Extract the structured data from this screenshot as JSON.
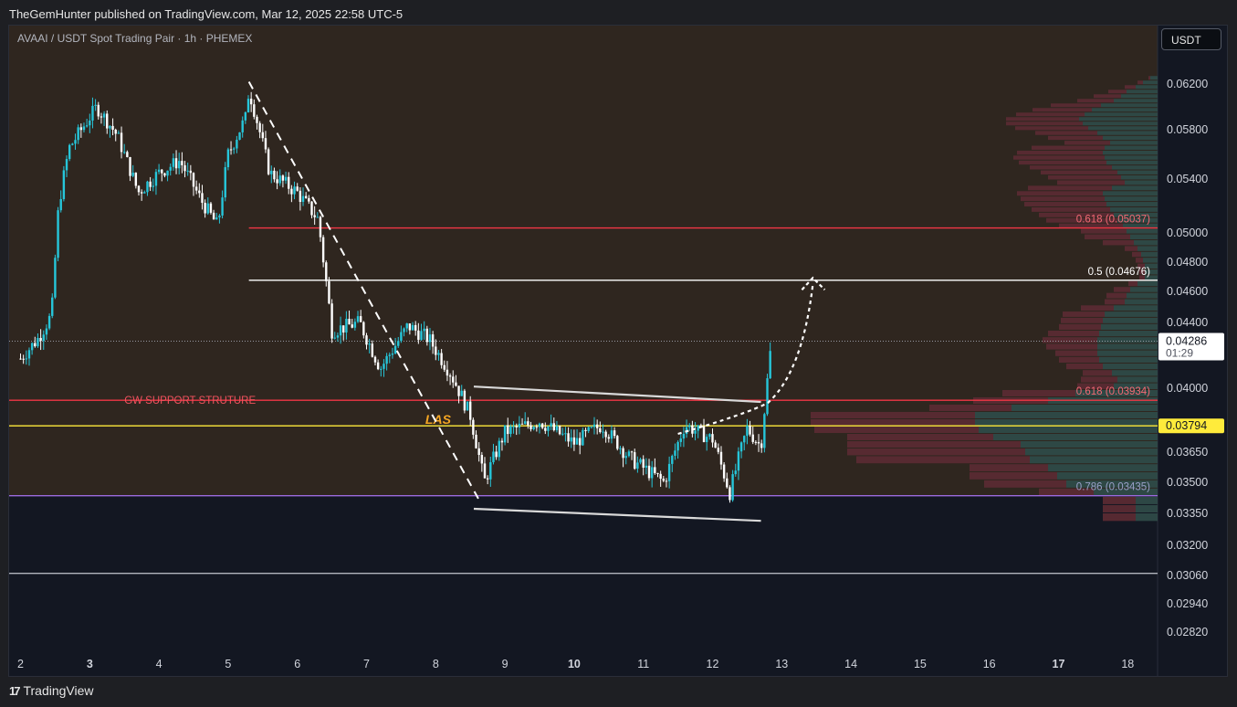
{
  "publish_info": "TheGemHunter published on TradingView.com, Mar 12, 2025 22:58 UTC-5",
  "symbol_title": "AVAAI / USDT Spot Trading Pair · 1h · PHEMEX",
  "currency_button": "USDT",
  "footer_brand": "TradingView",
  "colors": {
    "background_upper": "#2f261f",
    "background_lower": "#131722",
    "candle": "#26c6da",
    "resistance_line": "#f23645",
    "half_line": "#ffffff",
    "las_line": "#ffeb3b",
    "support_purple": "#9c6ade",
    "bottom_line": "#b2b5be",
    "vp_up": "#2e4a48",
    "vp_down": "#5a2a33",
    "las_label": "#f5a623"
  },
  "chart_data": {
    "type": "candlestick",
    "x_tick_labels": [
      "2",
      "3",
      "4",
      "5",
      "6",
      "7",
      "8",
      "9",
      "10",
      "11",
      "12",
      "13",
      "14",
      "15",
      "16",
      "17",
      "18"
    ],
    "bold_x_ticks": [
      "3",
      "10",
      "17"
    ],
    "y_tick_labels": [
      "0.06200",
      "0.05800",
      "0.05400",
      "0.05000",
      "0.04800",
      "0.04600",
      "0.04400",
      "0.04000",
      "0.03650",
      "0.03500",
      "0.03350",
      "0.03200",
      "0.03060",
      "0.02940",
      "0.02820"
    ],
    "current_price": "0.04286",
    "countdown": "01:29",
    "las_price": "0.03794",
    "horizontal_levels": [
      {
        "price": 0.05037,
        "label": "0.618 (0.05037)",
        "style": "resistance"
      },
      {
        "price": 0.04676,
        "label": "0.5 (0.04676)",
        "style": "half"
      },
      {
        "price": 0.03934,
        "label": "0.618 (0.03934)",
        "style": "resistance"
      },
      {
        "price": 0.03794,
        "label": "",
        "style": "las"
      },
      {
        "price": 0.03435,
        "label": "0.786 (0.03435)",
        "style": "purple"
      },
      {
        "price": 0.0307,
        "label": "",
        "style": "bottom"
      }
    ],
    "annotations": {
      "support_label": "GW SUPPORT STRUTURE",
      "las_label": "LAS"
    },
    "price_path": [
      {
        "day": 2.0,
        "price": 0.0418
      },
      {
        "day": 2.25,
        "price": 0.043
      },
      {
        "day": 2.45,
        "price": 0.0445
      },
      {
        "day": 2.55,
        "price": 0.052
      },
      {
        "day": 2.7,
        "price": 0.0565
      },
      {
        "day": 2.9,
        "price": 0.0582
      },
      {
        "day": 3.1,
        "price": 0.06
      },
      {
        "day": 3.4,
        "price": 0.0575
      },
      {
        "day": 3.7,
        "price": 0.053
      },
      {
        "day": 4.0,
        "price": 0.0545
      },
      {
        "day": 4.3,
        "price": 0.0555
      },
      {
        "day": 4.6,
        "price": 0.0525
      },
      {
        "day": 4.85,
        "price": 0.0505
      },
      {
        "day": 5.0,
        "price": 0.056
      },
      {
        "day": 5.25,
        "price": 0.059
      },
      {
        "day": 5.3,
        "price": 0.0615
      },
      {
        "day": 5.6,
        "price": 0.0545
      },
      {
        "day": 6.0,
        "price": 0.053
      },
      {
        "day": 6.3,
        "price": 0.051
      },
      {
        "day": 6.5,
        "price": 0.0435
      },
      {
        "day": 6.9,
        "price": 0.044
      },
      {
        "day": 7.2,
        "price": 0.0412
      },
      {
        "day": 7.6,
        "price": 0.0438
      },
      {
        "day": 7.9,
        "price": 0.043
      },
      {
        "day": 8.2,
        "price": 0.041
      },
      {
        "day": 8.5,
        "price": 0.0385
      },
      {
        "day": 8.7,
        "price": 0.035
      },
      {
        "day": 9.0,
        "price": 0.0376
      },
      {
        "day": 9.5,
        "price": 0.0382
      },
      {
        "day": 10.0,
        "price": 0.037
      },
      {
        "day": 10.4,
        "price": 0.038
      },
      {
        "day": 10.8,
        "price": 0.0362
      },
      {
        "day": 11.3,
        "price": 0.035
      },
      {
        "day": 11.6,
        "price": 0.038
      },
      {
        "day": 12.0,
        "price": 0.0372
      },
      {
        "day": 12.25,
        "price": 0.0345
      },
      {
        "day": 12.5,
        "price": 0.0378
      },
      {
        "day": 12.7,
        "price": 0.0368
      },
      {
        "day": 12.85,
        "price": 0.0428
      }
    ],
    "volume_profile": [
      {
        "price": 0.0625,
        "up": 8,
        "down": 2
      },
      {
        "price": 0.0621,
        "up": 16,
        "down": 6
      },
      {
        "price": 0.0617,
        "up": 24,
        "down": 12
      },
      {
        "price": 0.0613,
        "up": 34,
        "down": 20
      },
      {
        "price": 0.0609,
        "up": 40,
        "down": 30
      },
      {
        "price": 0.0605,
        "up": 48,
        "down": 40
      },
      {
        "price": 0.0601,
        "up": 62,
        "down": 55
      },
      {
        "price": 0.0597,
        "up": 72,
        "down": 65
      },
      {
        "price": 0.0593,
        "up": 80,
        "down": 75
      },
      {
        "price": 0.0589,
        "up": 86,
        "down": 80
      },
      {
        "price": 0.0585,
        "up": 82,
        "down": 84
      },
      {
        "price": 0.0581,
        "up": 76,
        "down": 80
      },
      {
        "price": 0.0577,
        "up": 66,
        "down": 68
      },
      {
        "price": 0.0573,
        "up": 60,
        "down": 60
      },
      {
        "price": 0.0569,
        "up": 52,
        "down": 50
      },
      {
        "price": 0.0565,
        "up": 58,
        "down": 80
      },
      {
        "price": 0.0561,
        "up": 60,
        "down": 94
      },
      {
        "price": 0.0557,
        "up": 58,
        "down": 100
      },
      {
        "price": 0.0553,
        "up": 56,
        "down": 96
      },
      {
        "price": 0.0549,
        "up": 50,
        "down": 90
      },
      {
        "price": 0.0545,
        "up": 44,
        "down": 84
      },
      {
        "price": 0.0541,
        "up": 40,
        "down": 80
      },
      {
        "price": 0.0537,
        "up": 36,
        "down": 74
      },
      {
        "price": 0.0533,
        "up": 50,
        "down": 92
      },
      {
        "price": 0.0529,
        "up": 60,
        "down": 94
      },
      {
        "price": 0.0525,
        "up": 58,
        "down": 92
      },
      {
        "price": 0.0521,
        "up": 56,
        "down": 90
      },
      {
        "price": 0.0517,
        "up": 52,
        "down": 86
      },
      {
        "price": 0.0513,
        "up": 48,
        "down": 82
      },
      {
        "price": 0.0509,
        "up": 44,
        "down": 78
      },
      {
        "price": 0.0505,
        "up": 38,
        "down": 70
      },
      {
        "price": 0.0501,
        "up": 34,
        "down": 50
      },
      {
        "price": 0.0497,
        "up": 30,
        "down": 50
      },
      {
        "price": 0.0493,
        "up": 26,
        "down": 34
      },
      {
        "price": 0.0489,
        "up": 22,
        "down": 14
      },
      {
        "price": 0.0485,
        "up": 18,
        "down": 10
      },
      {
        "price": 0.0481,
        "up": 16,
        "down": 8
      },
      {
        "price": 0.0477,
        "up": 14,
        "down": 8
      },
      {
        "price": 0.0473,
        "up": 14,
        "down": 6
      },
      {
        "price": 0.0469,
        "up": 14,
        "down": 6
      },
      {
        "price": 0.0465,
        "up": 22,
        "down": 10
      },
      {
        "price": 0.0461,
        "up": 30,
        "down": 18
      },
      {
        "price": 0.0457,
        "up": 34,
        "down": 22
      },
      {
        "price": 0.0453,
        "up": 36,
        "down": 22
      },
      {
        "price": 0.0449,
        "up": 48,
        "down": 36
      },
      {
        "price": 0.0445,
        "up": 58,
        "down": 46
      },
      {
        "price": 0.0441,
        "up": 60,
        "down": 46
      },
      {
        "price": 0.0437,
        "up": 62,
        "down": 46
      },
      {
        "price": 0.0433,
        "up": 64,
        "down": 56
      },
      {
        "price": 0.0429,
        "up": 66,
        "down": 60
      },
      {
        "price": 0.0425,
        "up": 66,
        "down": 56
      },
      {
        "price": 0.0421,
        "up": 66,
        "down": 46
      },
      {
        "price": 0.0417,
        "up": 64,
        "down": 44
      },
      {
        "price": 0.0413,
        "up": 60,
        "down": 40
      },
      {
        "price": 0.0409,
        "up": 50,
        "down": 32
      },
      {
        "price": 0.0405,
        "up": 44,
        "down": 40
      },
      {
        "price": 0.0401,
        "up": 48,
        "down": 40
      },
      {
        "price": 0.0397,
        "up": 90,
        "down": 80
      },
      {
        "price": 0.0393,
        "up": 120,
        "down": 82
      },
      {
        "price": 0.0389,
        "up": 160,
        "down": 90
      },
      {
        "price": 0.0385,
        "up": 200,
        "down": 180
      },
      {
        "price": 0.0381,
        "up": 200,
        "down": 180
      },
      {
        "price": 0.0377,
        "up": 196,
        "down": 180
      },
      {
        "price": 0.0373,
        "up": 180,
        "down": 160
      },
      {
        "price": 0.0369,
        "up": 150,
        "down": 190
      },
      {
        "price": 0.0365,
        "up": 145,
        "down": 195
      },
      {
        "price": 0.0361,
        "up": 140,
        "down": 190
      },
      {
        "price": 0.0357,
        "up": 120,
        "down": 86
      },
      {
        "price": 0.0353,
        "up": 110,
        "down": 96
      },
      {
        "price": 0.0349,
        "up": 100,
        "down": 90
      },
      {
        "price": 0.0345,
        "up": 70,
        "down": 60
      },
      {
        "price": 0.0341,
        "up": 24,
        "down": 36
      },
      {
        "price": 0.0337,
        "up": 24,
        "down": 36
      },
      {
        "price": 0.0333,
        "up": 24,
        "down": 36
      }
    ]
  }
}
